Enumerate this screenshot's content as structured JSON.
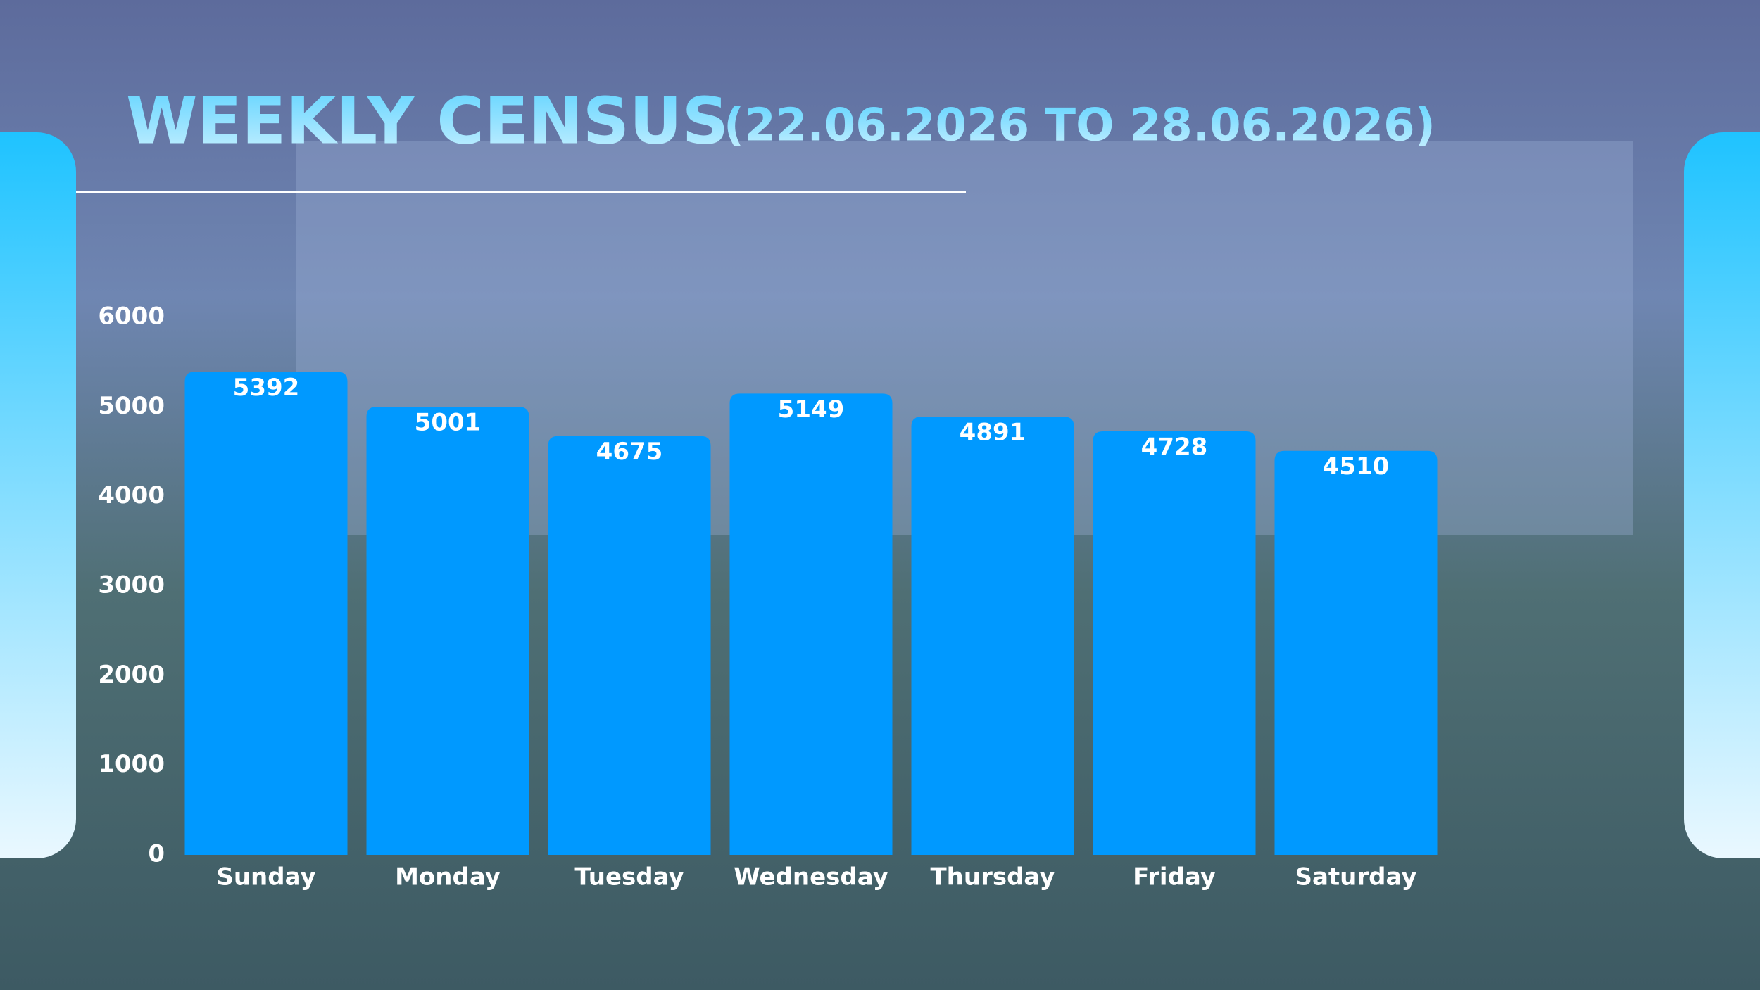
{
  "chart_data": {
    "type": "bar",
    "title": "WEEKLY CENSUS",
    "subtitle": "(22.06.2026 TO 28.06.2026)",
    "categories": [
      "Sunday",
      "Monday",
      "Tuesday",
      "Wednesday",
      "Thursday",
      "Friday",
      "Saturday"
    ],
    "values": [
      5392,
      5001,
      4675,
      5149,
      4891,
      4728,
      4510
    ],
    "color": "#0099ff",
    "ylim": [
      0,
      6000
    ],
    "yticks": [
      0,
      1000,
      2000,
      3000,
      4000,
      5000,
      6000
    ],
    "grid": false
  }
}
